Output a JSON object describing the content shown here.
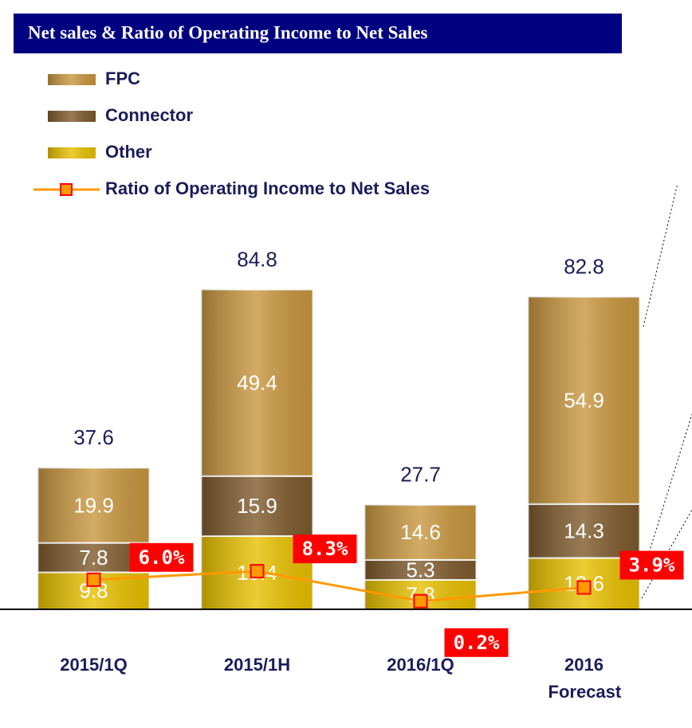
{
  "chart_data": {
    "type": "bar",
    "stacked": true,
    "title": "Net sales &  Ratio of Operating Income  to Net Sales",
    "categories": [
      "2015/1Q",
      "2015/1H",
      "2016/1Q",
      "2016 Forecast"
    ],
    "series": [
      {
        "name": "Other",
        "color": "#e8c000",
        "values": [
          9.8,
          19.4,
          7.8,
          13.6
        ]
      },
      {
        "name": "Connector",
        "color": "#7e5a2c",
        "values": [
          7.8,
          15.9,
          5.3,
          14.3
        ]
      },
      {
        "name": "FPC",
        "color": "#c8963e",
        "values": [
          19.9,
          49.4,
          14.6,
          54.9
        ]
      }
    ],
    "totals": [
      37.6,
      84.8,
      27.7,
      82.8
    ],
    "line": {
      "name": "Ratio of Operating Income to Net Sales",
      "color": "#ff9900",
      "marker_color": "#ff0000",
      "axis": "y2",
      "values": [
        6.0,
        8.3,
        0.2,
        3.9
      ],
      "value_labels": [
        "6.0%",
        "8.3%",
        "0.2%",
        "3.9%"
      ]
    },
    "ylim": [
      0,
      100
    ],
    "y2lim": [
      -2,
      100
    ]
  }
}
